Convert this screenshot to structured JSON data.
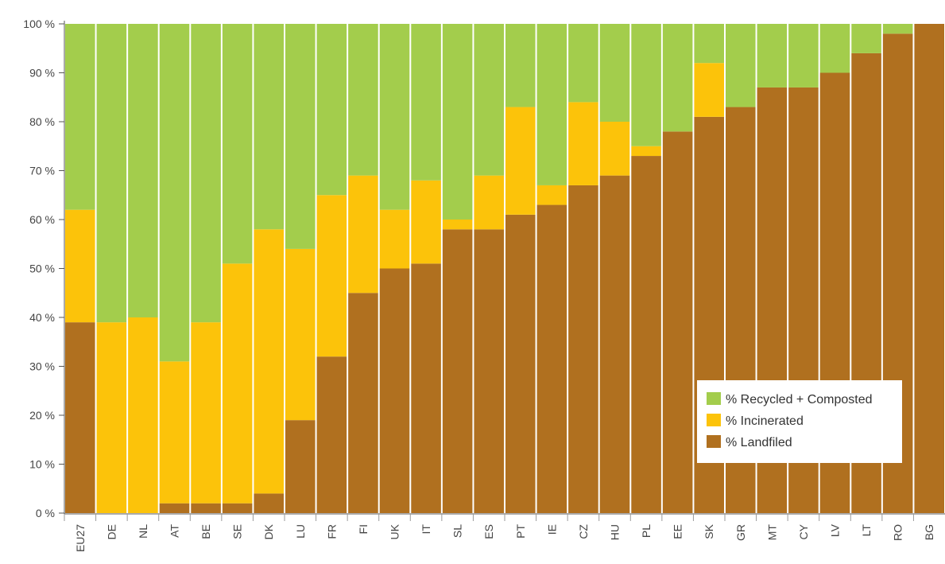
{
  "colors": {
    "recycled": "#a3cd4c",
    "incinerated": "#fcc30a",
    "landfilled": "#b0701f",
    "axis": "#555555",
    "tick_text": "#444444"
  },
  "legend": {
    "position": "bottom-right",
    "items": [
      {
        "label": "% Recycled + Composted",
        "color_key": "recycled"
      },
      {
        "label": "% Incinerated",
        "color_key": "incinerated"
      },
      {
        "label": "% Landfiled",
        "color_key": "landfilled"
      }
    ]
  },
  "chart_data": {
    "type": "bar",
    "stacked": true,
    "title": "",
    "xlabel": "",
    "ylabel": "",
    "ylim": [
      0,
      100
    ],
    "y_ticks": [
      "0 %",
      "10 %",
      "20 %",
      "30 %",
      "40 %",
      "50 %",
      "60 %",
      "70 %",
      "80 %",
      "90 %",
      "100 %"
    ],
    "grid": false,
    "categories": [
      "EU27",
      "DE",
      "NL",
      "AT",
      "BE",
      "SE",
      "DK",
      "LU",
      "FR",
      "FI",
      "UK",
      "IT",
      "SL",
      "ES",
      "PT",
      "IE",
      "CZ",
      "HU",
      "PL",
      "EE",
      "SK",
      "GR",
      "MT",
      "CY",
      "LV",
      "LT",
      "RO",
      "BG"
    ],
    "series": [
      {
        "name": "% Landfiled",
        "color_key": "landfilled",
        "values": [
          39,
          0,
          0,
          2,
          2,
          2,
          4,
          19,
          32,
          45,
          50,
          51,
          58,
          58,
          61,
          63,
          67,
          69,
          73,
          78,
          81,
          83,
          87,
          87,
          90,
          94,
          98,
          100
        ]
      },
      {
        "name": "% Incinerated",
        "color_key": "incinerated",
        "values": [
          23,
          39,
          40,
          29,
          37,
          49,
          54,
          35,
          33,
          24,
          12,
          17,
          2,
          11,
          22,
          4,
          17,
          11,
          2,
          0,
          11,
          0,
          0,
          0,
          0,
          0,
          0,
          0
        ]
      },
      {
        "name": "% Recycled + Composted",
        "color_key": "recycled",
        "values": [
          38,
          61,
          60,
          69,
          61,
          49,
          42,
          46,
          35,
          31,
          38,
          32,
          40,
          31,
          17,
          33,
          16,
          20,
          25,
          22,
          8,
          17,
          13,
          13,
          10,
          6,
          2,
          0
        ]
      }
    ]
  }
}
